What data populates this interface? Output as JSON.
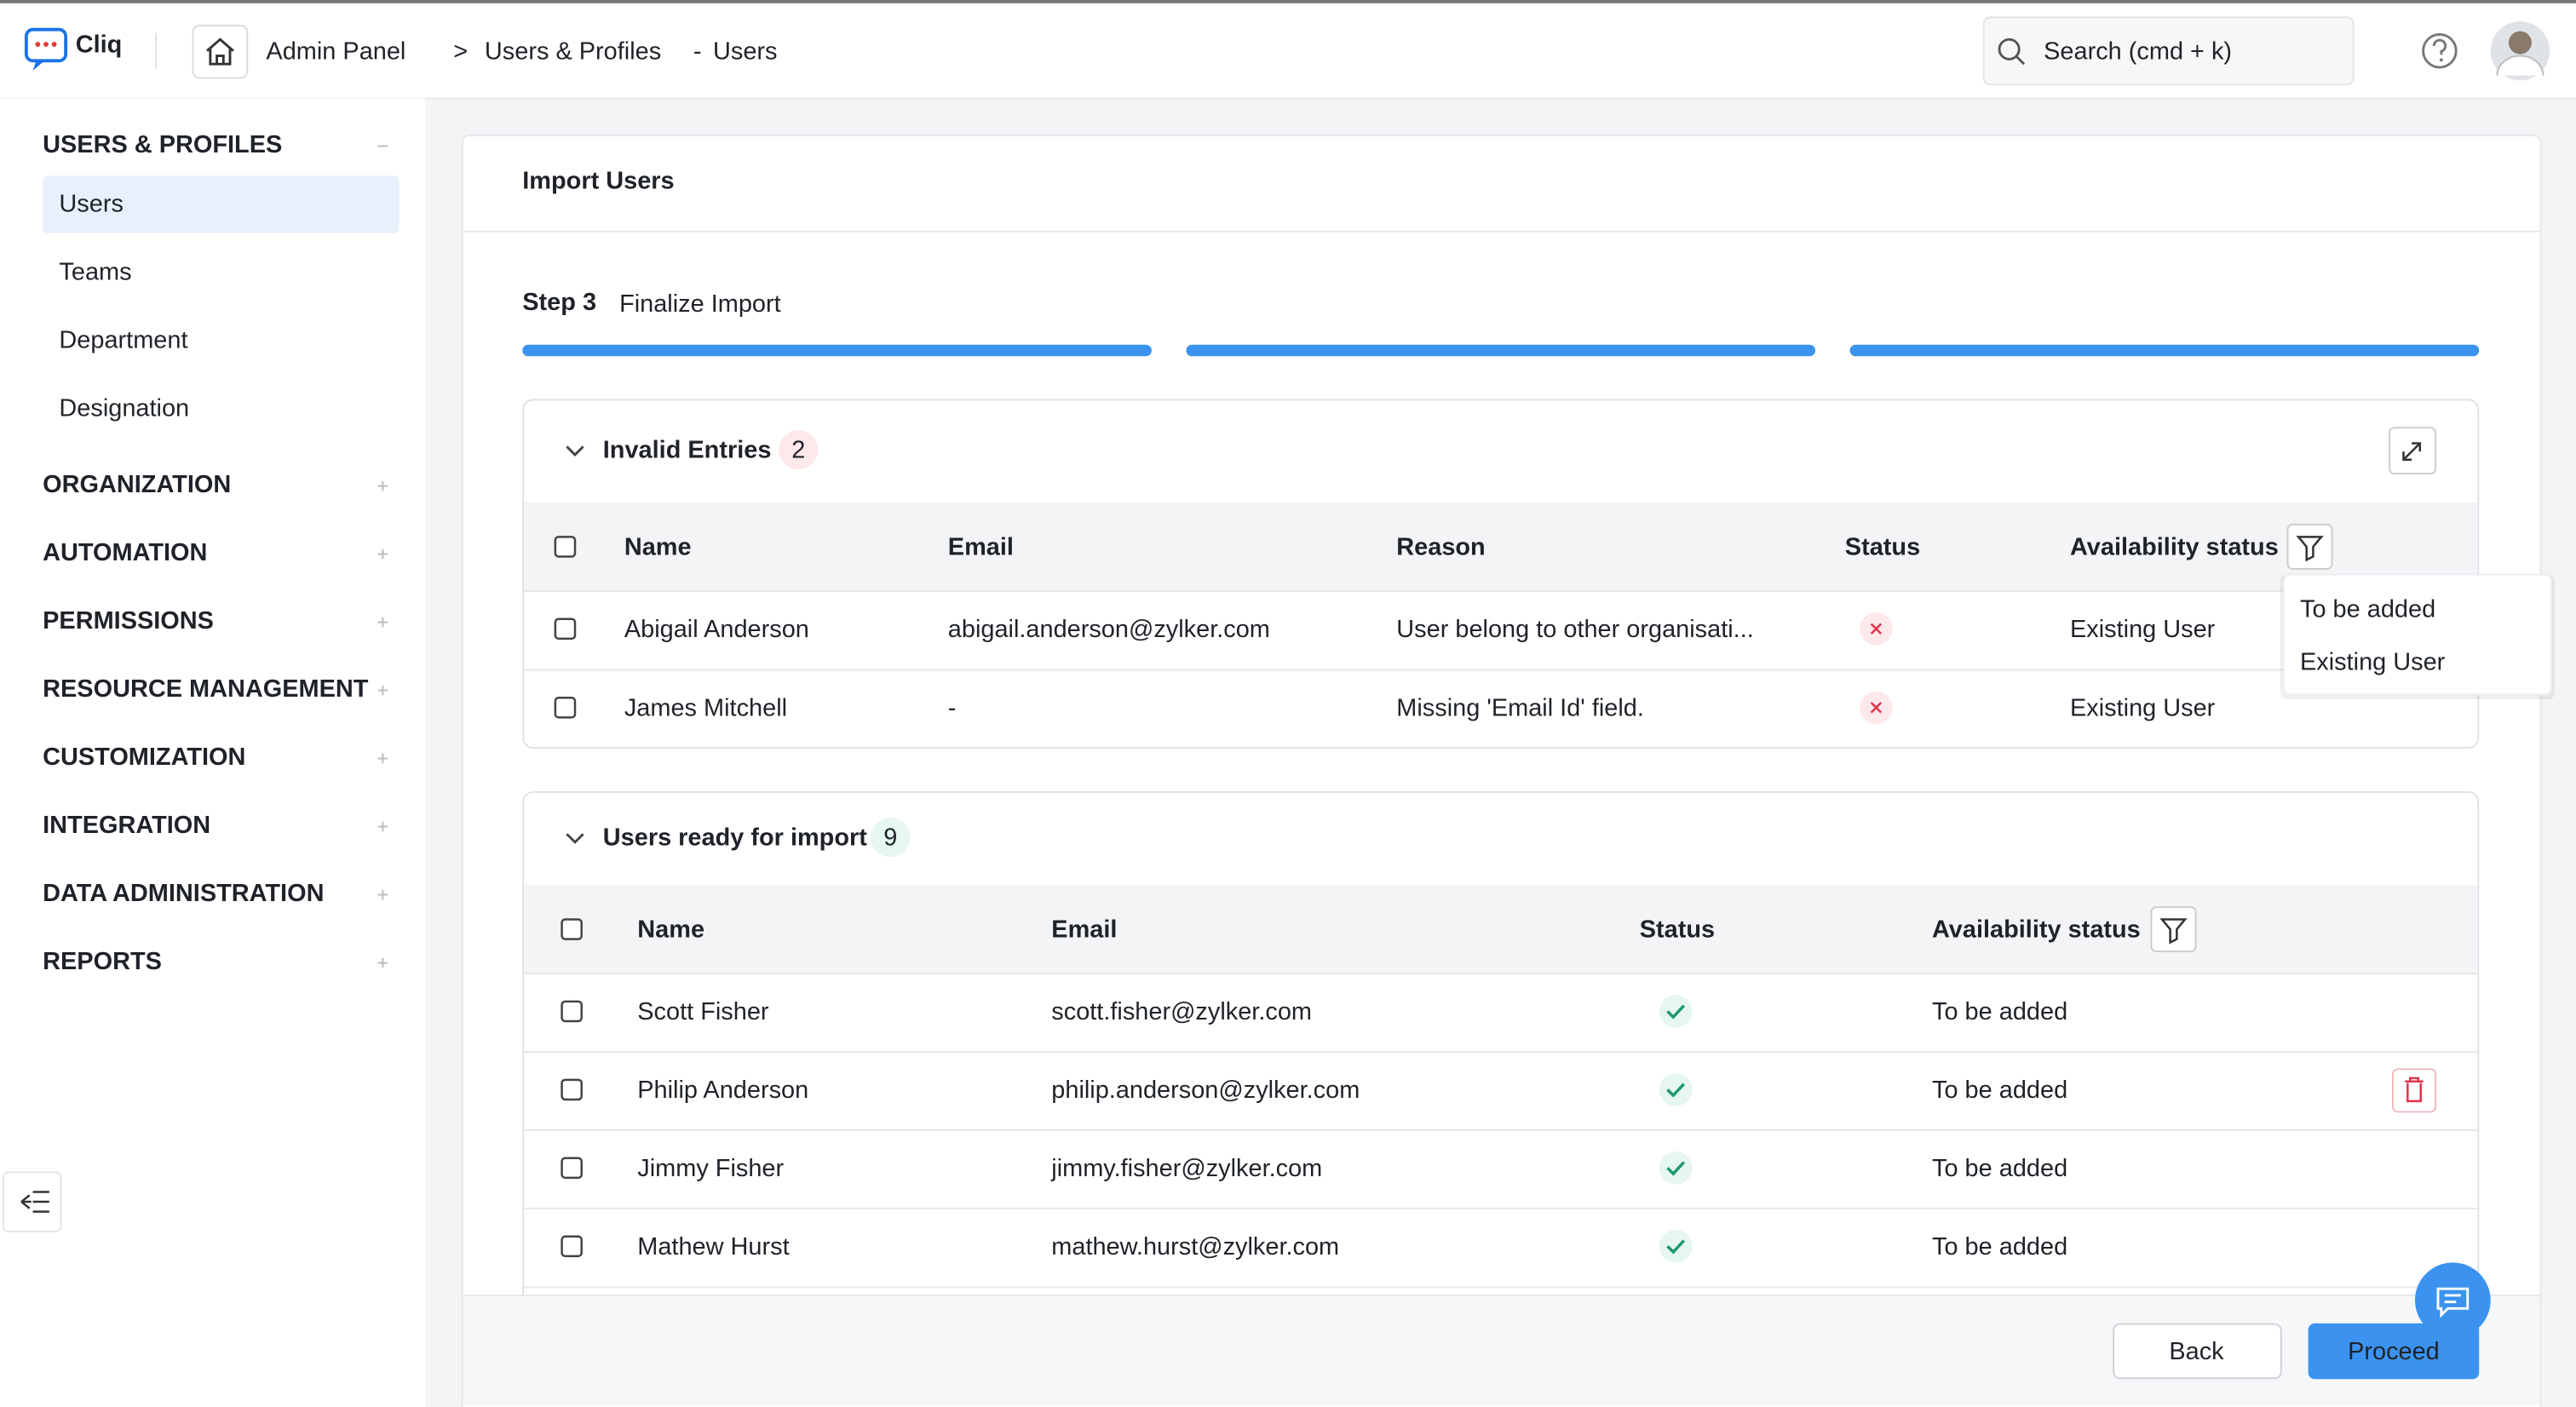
{
  "header": {
    "app_name": "Cliq",
    "breadcrumb": [
      "Admin Panel",
      ">",
      "Users & Profiles",
      "-",
      "Users"
    ],
    "search_placeholder": "Search (cmd + k)"
  },
  "sidebar": {
    "sections": [
      {
        "title": "USERS & PROFILES",
        "items": [
          "Users",
          "Teams",
          "Department",
          "Designation"
        ]
      },
      {
        "title": "ORGANIZATION"
      },
      {
        "title": "AUTOMATION"
      },
      {
        "title": "PERMISSIONS"
      },
      {
        "title": "RESOURCE MANAGEMENT"
      },
      {
        "title": "CUSTOMIZATION"
      },
      {
        "title": "INTEGRATION"
      },
      {
        "title": "DATA ADMINISTRATION"
      },
      {
        "title": "REPORTS"
      }
    ]
  },
  "main": {
    "title": "Import Users",
    "step": "Step 3",
    "step_label": "Finalize Import",
    "invalid": {
      "title": "Invalid Entries",
      "count": "2",
      "columns": [
        "Name",
        "Email",
        "Reason",
        "Status",
        "Availability status"
      ],
      "rows": [
        {
          "name": "Abigail Anderson",
          "email": "abigail.anderson@zylker.com",
          "reason": "User belong to other organisati...",
          "availability": "Existing User"
        },
        {
          "name": "James Mitchell",
          "email": "-",
          "reason": "Missing 'Email Id' field.",
          "availability": "Existing User"
        }
      ],
      "filter_options": [
        "To be added",
        "Existing User"
      ]
    },
    "ready": {
      "title": "Users ready for import",
      "count": "9",
      "columns": [
        "Name",
        "Email",
        "Status",
        "Availability status"
      ],
      "rows": [
        {
          "name": "Scott Fisher",
          "email": "scott.fisher@zylker.com",
          "availability": "To be added"
        },
        {
          "name": "Philip Anderson",
          "email": "philip.anderson@zylker.com",
          "availability": "To be added"
        },
        {
          "name": "Jimmy Fisher",
          "email": "jimmy.fisher@zylker.com",
          "availability": "To be added"
        },
        {
          "name": "Mathew Hurst",
          "email": "mathew.hurst@zylker.com",
          "availability": "To be added"
        }
      ]
    },
    "buttons": {
      "back": "Back",
      "proceed": "Proceed"
    }
  }
}
